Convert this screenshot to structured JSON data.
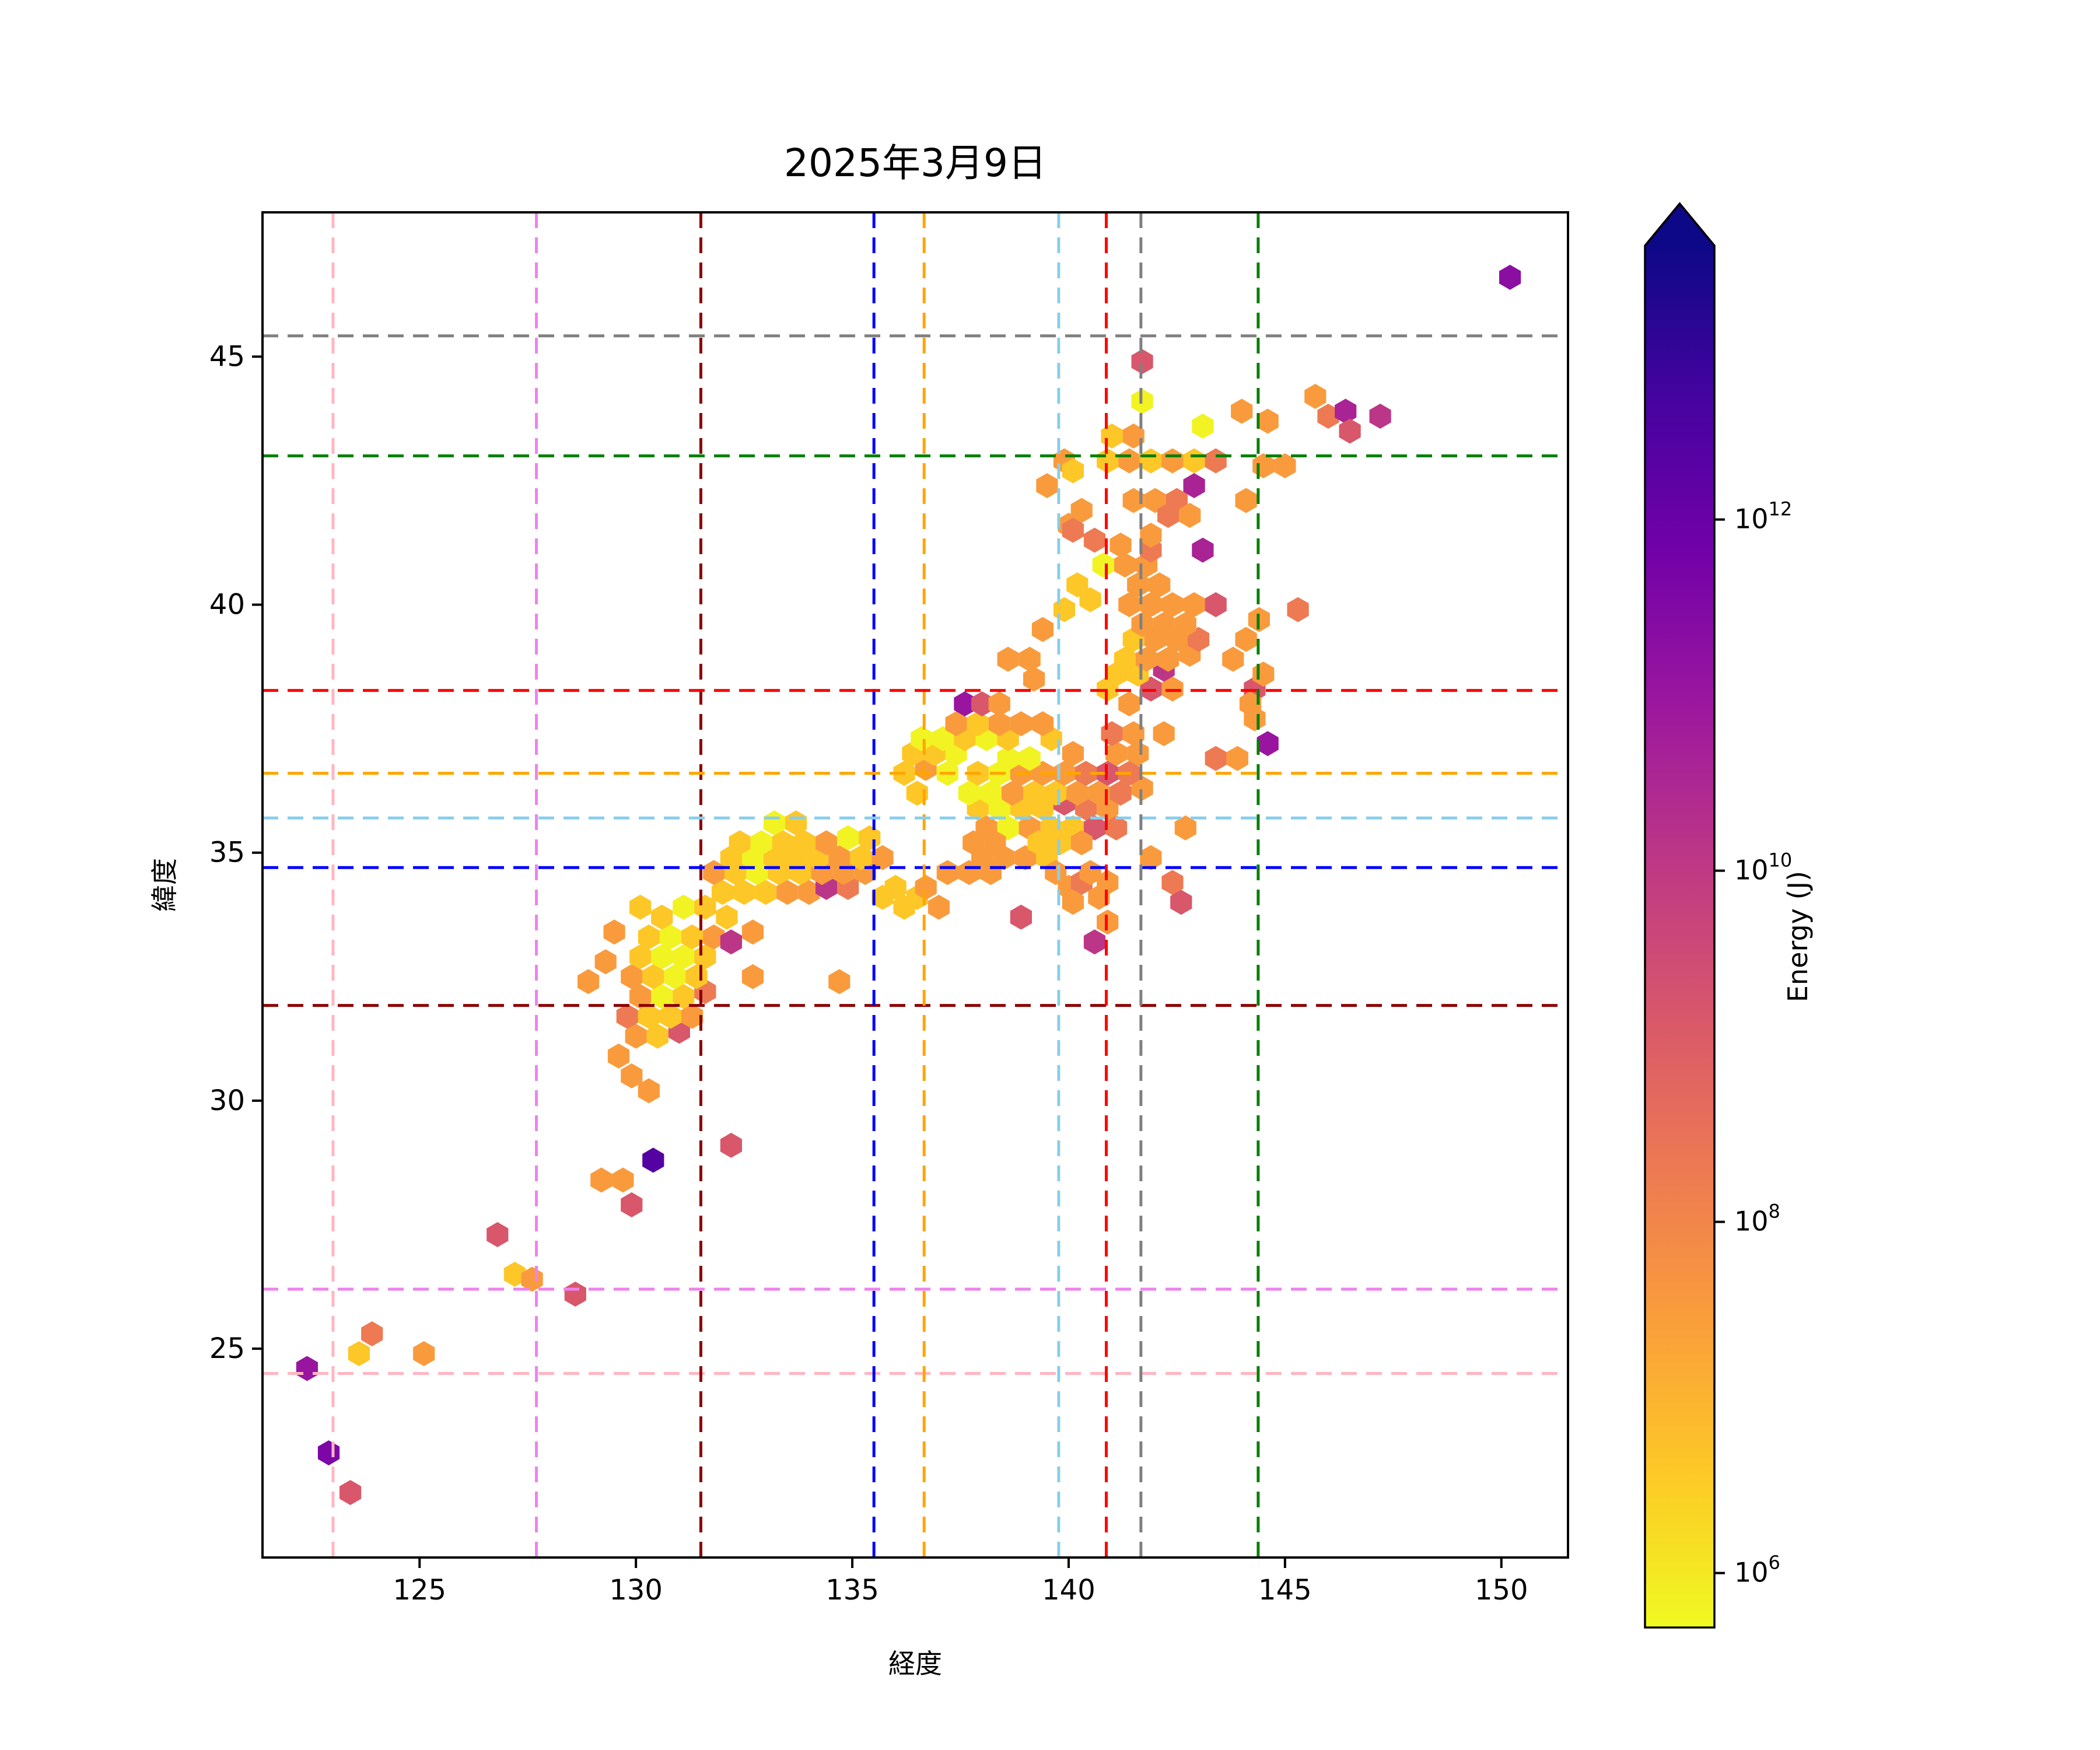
{
  "title": "2025年3月9日",
  "axes": {
    "xlabel": "経度",
    "ylabel": "緯度",
    "xlim": [
      121.37,
      151.54
    ],
    "ylim": [
      20.79,
      47.91
    ],
    "xticks": [
      125,
      130,
      135,
      140,
      145,
      150
    ],
    "yticks": [
      25,
      30,
      35,
      40,
      45
    ]
  },
  "colorbar": {
    "label": "Energy (J)",
    "tick_exponents": [
      12,
      10,
      8,
      6
    ],
    "log10_min": 5.69,
    "log10_max": 13.56,
    "extend": "max",
    "colormap_low_to_high": [
      "#f0f921",
      "#fdc926",
      "#fa9e3b",
      "#ed7953",
      "#d8576b",
      "#bd3786",
      "#9c179e",
      "#7201a8",
      "#46039f",
      "#0d0887"
    ]
  },
  "reference_lines": [
    {
      "name": "pink-crosshair",
      "color": "#FFB6C1",
      "lon": 123.0,
      "lat": 24.5
    },
    {
      "name": "violet-crosshair",
      "color": "#EE82EE",
      "lon": 127.7,
      "lat": 26.2
    },
    {
      "name": "darkred-crosshair",
      "color": "#8B0000",
      "lon": 131.5,
      "lat": 31.92
    },
    {
      "name": "blue-crosshair",
      "color": "#0000FF",
      "lon": 135.5,
      "lat": 34.7
    },
    {
      "name": "orange-crosshair",
      "color": "#FFA500",
      "lon": 136.66,
      "lat": 36.6
    },
    {
      "name": "skyblue-crosshair",
      "color": "#87CEEB",
      "lon": 139.77,
      "lat": 35.7
    },
    {
      "name": "red-crosshair",
      "color": "#FF0000",
      "lon": 140.87,
      "lat": 38.27
    },
    {
      "name": "gray-crosshair",
      "color": "#808080",
      "lon": 141.67,
      "lat": 45.42
    },
    {
      "name": "green-crosshair",
      "color": "#008000",
      "lon": 144.38,
      "lat": 43.0
    }
  ],
  "chart_data": {
    "type": "heatmap",
    "subtype": "hexbin",
    "title": "2025年3月9日",
    "xlabel": "経度",
    "ylabel": "緯度",
    "value_label": "Energy (J)",
    "value_scale": "log10",
    "xlim": [
      121.37,
      151.54
    ],
    "ylim": [
      20.79,
      47.91
    ],
    "hex_width_deg": 0.5,
    "points_format": [
      "lon",
      "lat",
      "log10_energy_J"
    ],
    "points": [
      [
        122.4,
        24.6,
        11.0
      ],
      [
        122.9,
        22.9,
        11.6
      ],
      [
        123.4,
        22.1,
        9.2
      ],
      [
        123.6,
        24.9,
        6.6
      ],
      [
        123.9,
        25.3,
        8.3
      ],
      [
        125.1,
        24.9,
        7.5
      ],
      [
        126.8,
        27.3,
        9.2
      ],
      [
        127.2,
        26.5,
        6.6
      ],
      [
        127.6,
        26.4,
        7.5
      ],
      [
        128.6,
        26.1,
        9.2
      ],
      [
        129.2,
        28.4,
        7.5
      ],
      [
        129.7,
        28.4,
        7.5
      ],
      [
        129.9,
        27.9,
        9.2
      ],
      [
        130.4,
        28.8,
        12.4
      ],
      [
        132.2,
        29.1,
        9.2
      ],
      [
        129.6,
        30.9,
        7.5
      ],
      [
        129.9,
        30.5,
        7.5
      ],
      [
        130.3,
        30.2,
        7.5
      ],
      [
        130.0,
        31.3,
        7.5
      ],
      [
        130.5,
        31.3,
        6.6
      ],
      [
        131.0,
        31.4,
        9.2
      ],
      [
        129.8,
        31.7,
        8.3
      ],
      [
        130.3,
        31.7,
        6.6
      ],
      [
        130.8,
        31.7,
        6.6
      ],
      [
        131.3,
        31.7,
        7.5
      ],
      [
        130.1,
        32.1,
        7.5
      ],
      [
        130.6,
        32.1,
        5.8
      ],
      [
        131.1,
        32.1,
        6.6
      ],
      [
        131.6,
        32.2,
        8.3
      ],
      [
        128.9,
        32.4,
        7.5
      ],
      [
        129.3,
        32.8,
        7.5
      ],
      [
        129.9,
        32.5,
        7.5
      ],
      [
        130.4,
        32.5,
        6.6
      ],
      [
        130.9,
        32.5,
        5.8
      ],
      [
        131.4,
        32.5,
        6.6
      ],
      [
        130.1,
        32.9,
        6.6
      ],
      [
        130.6,
        32.9,
        5.8
      ],
      [
        131.1,
        32.9,
        5.8
      ],
      [
        131.6,
        32.9,
        6.6
      ],
      [
        130.3,
        33.3,
        6.6
      ],
      [
        130.8,
        33.3,
        5.8
      ],
      [
        131.3,
        33.3,
        6.6
      ],
      [
        131.8,
        33.3,
        7.5
      ],
      [
        132.2,
        33.2,
        10.1
      ],
      [
        129.5,
        33.4,
        7.5
      ],
      [
        130.1,
        33.9,
        6.6
      ],
      [
        130.6,
        33.7,
        6.6
      ],
      [
        131.1,
        33.9,
        5.8
      ],
      [
        131.6,
        33.9,
        6.6
      ],
      [
        132.1,
        33.7,
        6.6
      ],
      [
        132.7,
        32.5,
        7.5
      ],
      [
        134.7,
        32.4,
        7.5
      ],
      [
        132.7,
        33.4,
        7.5
      ],
      [
        132.0,
        34.2,
        6.6
      ],
      [
        132.5,
        34.2,
        6.6
      ],
      [
        133.0,
        34.2,
        6.6
      ],
      [
        133.5,
        34.2,
        7.5
      ],
      [
        134.0,
        34.2,
        7.5
      ],
      [
        134.4,
        34.3,
        10.1
      ],
      [
        134.9,
        34.3,
        8.3
      ],
      [
        131.8,
        34.6,
        7.5
      ],
      [
        132.3,
        34.6,
        6.6
      ],
      [
        132.8,
        34.6,
        5.8
      ],
      [
        133.3,
        34.6,
        6.6
      ],
      [
        133.8,
        34.6,
        6.6
      ],
      [
        134.3,
        34.6,
        7.5
      ],
      [
        134.8,
        34.6,
        7.5
      ],
      [
        135.3,
        34.6,
        7.5
      ],
      [
        132.2,
        34.9,
        6.6
      ],
      [
        132.7,
        34.9,
        5.8
      ],
      [
        133.2,
        34.9,
        6.6
      ],
      [
        133.7,
        34.9,
        6.6
      ],
      [
        134.2,
        34.9,
        6.6
      ],
      [
        134.7,
        34.9,
        7.5
      ],
      [
        135.2,
        34.9,
        6.6
      ],
      [
        135.7,
        34.9,
        7.5
      ],
      [
        132.4,
        35.2,
        6.6
      ],
      [
        132.9,
        35.2,
        5.8
      ],
      [
        133.4,
        35.2,
        6.6
      ],
      [
        133.9,
        35.2,
        6.6
      ],
      [
        134.4,
        35.2,
        7.5
      ],
      [
        134.9,
        35.3,
        5.8
      ],
      [
        135.4,
        35.3,
        6.6
      ],
      [
        133.2,
        35.6,
        5.8
      ],
      [
        133.7,
        35.6,
        6.6
      ],
      [
        135.7,
        34.1,
        6.6
      ],
      [
        136.0,
        34.3,
        6.6
      ],
      [
        136.2,
        33.9,
        6.6
      ],
      [
        136.5,
        34.1,
        6.6
      ],
      [
        136.7,
        34.3,
        7.5
      ],
      [
        137.0,
        33.9,
        7.5
      ],
      [
        137.2,
        34.6,
        7.5
      ],
      [
        137.7,
        34.6,
        7.5
      ],
      [
        138.2,
        34.6,
        7.5
      ],
      [
        138.0,
        34.9,
        7.5
      ],
      [
        138.5,
        34.9,
        7.5
      ],
      [
        139.0,
        34.9,
        7.5
      ],
      [
        139.5,
        34.9,
        6.6
      ],
      [
        139.7,
        34.6,
        7.5
      ],
      [
        140.0,
        34.3,
        7.5
      ],
      [
        140.3,
        34.4,
        8.3
      ],
      [
        140.5,
        34.6,
        7.5
      ],
      [
        140.9,
        34.4,
        7.5
      ],
      [
        140.1,
        34.0,
        7.5
      ],
      [
        140.7,
        34.1,
        7.5
      ],
      [
        140.9,
        33.6,
        7.5
      ],
      [
        140.6,
        33.2,
        10.1
      ],
      [
        138.9,
        33.7,
        9.2
      ],
      [
        142.4,
        34.4,
        8.3
      ],
      [
        142.6,
        34.0,
        9.2
      ],
      [
        141.9,
        34.9,
        7.5
      ],
      [
        138.1,
        35.5,
        7.5
      ],
      [
        138.6,
        35.5,
        5.8
      ],
      [
        139.1,
        35.5,
        7.5
      ],
      [
        139.6,
        35.5,
        6.6
      ],
      [
        140.1,
        35.5,
        6.6
      ],
      [
        140.6,
        35.5,
        9.2
      ],
      [
        141.1,
        35.5,
        8.3
      ],
      [
        137.8,
        35.2,
        7.5
      ],
      [
        138.3,
        35.2,
        7.5
      ],
      [
        139.3,
        35.2,
        6.6
      ],
      [
        139.8,
        35.2,
        6.6
      ],
      [
        140.3,
        35.2,
        7.5
      ],
      [
        137.9,
        35.9,
        6.6
      ],
      [
        138.4,
        35.9,
        5.8
      ],
      [
        138.9,
        35.9,
        6.6
      ],
      [
        139.4,
        35.9,
        6.6
      ],
      [
        139.9,
        36.0,
        9.2
      ],
      [
        140.4,
        35.9,
        8.3
      ],
      [
        140.9,
        35.9,
        7.5
      ],
      [
        137.7,
        36.2,
        5.8
      ],
      [
        138.2,
        36.2,
        5.8
      ],
      [
        138.7,
        36.2,
        7.5
      ],
      [
        139.2,
        36.2,
        6.6
      ],
      [
        139.7,
        36.2,
        6.6
      ],
      [
        140.2,
        36.2,
        7.5
      ],
      [
        140.7,
        36.2,
        7.5
      ],
      [
        141.2,
        36.2,
        8.3
      ],
      [
        141.7,
        36.3,
        7.5
      ],
      [
        136.5,
        36.2,
        6.6
      ],
      [
        136.2,
        36.6,
        6.6
      ],
      [
        136.7,
        36.7,
        7.5
      ],
      [
        137.2,
        36.6,
        5.8
      ],
      [
        137.9,
        36.6,
        6.6
      ],
      [
        138.4,
        36.6,
        5.8
      ],
      [
        138.9,
        36.6,
        7.5
      ],
      [
        139.4,
        36.6,
        7.5
      ],
      [
        139.9,
        36.6,
        7.5
      ],
      [
        140.4,
        36.6,
        8.3
      ],
      [
        140.9,
        36.6,
        9.2
      ],
      [
        141.4,
        36.6,
        8.3
      ],
      [
        136.4,
        37.0,
        6.6
      ],
      [
        136.9,
        37.0,
        6.6
      ],
      [
        137.4,
        37.0,
        5.8
      ],
      [
        138.6,
        36.9,
        5.8
      ],
      [
        139.1,
        36.9,
        5.8
      ],
      [
        140.1,
        37.0,
        7.5
      ],
      [
        141.1,
        37.0,
        7.5
      ],
      [
        141.6,
        37.0,
        7.5
      ],
      [
        136.6,
        37.3,
        5.8
      ],
      [
        137.1,
        37.3,
        5.8
      ],
      [
        137.6,
        37.3,
        6.6
      ],
      [
        138.1,
        37.3,
        5.8
      ],
      [
        138.6,
        37.3,
        6.6
      ],
      [
        139.6,
        37.3,
        6.6
      ],
      [
        141.0,
        37.4,
        8.3
      ],
      [
        141.5,
        37.4,
        7.5
      ],
      [
        137.4,
        37.6,
        7.5
      ],
      [
        137.9,
        37.6,
        6.6
      ],
      [
        138.4,
        37.6,
        7.5
      ],
      [
        138.9,
        37.6,
        7.5
      ],
      [
        139.4,
        37.6,
        7.5
      ],
      [
        137.6,
        38.0,
        11.0
      ],
      [
        138.0,
        38.0,
        9.2
      ],
      [
        138.4,
        38.0,
        7.5
      ],
      [
        138.6,
        38.9,
        7.5
      ],
      [
        139.1,
        38.9,
        7.5
      ],
      [
        139.2,
        38.5,
        7.5
      ],
      [
        139.4,
        39.5,
        7.5
      ],
      [
        139.9,
        39.9,
        6.6
      ],
      [
        140.2,
        40.4,
        6.6
      ],
      [
        140.5,
        40.1,
        6.6
      ],
      [
        140.9,
        38.3,
        6.6
      ],
      [
        141.4,
        38.0,
        7.5
      ],
      [
        141.9,
        38.3,
        9.2
      ],
      [
        142.4,
        38.3,
        7.5
      ],
      [
        141.1,
        38.6,
        6.6
      ],
      [
        141.6,
        38.6,
        6.6
      ],
      [
        142.2,
        38.7,
        10.1
      ],
      [
        141.3,
        38.9,
        6.6
      ],
      [
        141.8,
        38.9,
        7.5
      ],
      [
        142.3,
        38.9,
        7.5
      ],
      [
        142.8,
        39.0,
        7.5
      ],
      [
        141.5,
        39.3,
        6.6
      ],
      [
        142.0,
        39.3,
        7.5
      ],
      [
        142.5,
        39.3,
        7.5
      ],
      [
        143.0,
        39.3,
        8.3
      ],
      [
        141.7,
        39.6,
        7.5
      ],
      [
        142.2,
        39.6,
        7.5
      ],
      [
        142.7,
        39.6,
        7.5
      ],
      [
        141.4,
        40.0,
        7.5
      ],
      [
        141.9,
        40.0,
        7.5
      ],
      [
        142.4,
        40.0,
        7.5
      ],
      [
        142.9,
        40.0,
        7.5
      ],
      [
        143.4,
        40.0,
        9.2
      ],
      [
        141.6,
        40.4,
        7.5
      ],
      [
        142.1,
        40.4,
        7.5
      ],
      [
        141.3,
        40.8,
        7.5
      ],
      [
        141.8,
        40.8,
        7.5
      ],
      [
        140.8,
        40.8,
        5.8
      ],
      [
        141.2,
        41.2,
        7.5
      ],
      [
        141.9,
        41.1,
        8.3
      ],
      [
        144.3,
        38.3,
        9.2
      ],
      [
        144.1,
        39.3,
        7.5
      ],
      [
        144.4,
        39.7,
        7.5
      ],
      [
        143.8,
        38.9,
        7.5
      ],
      [
        144.5,
        38.6,
        7.5
      ],
      [
        144.2,
        38.0,
        7.5
      ],
      [
        144.3,
        37.7,
        7.5
      ],
      [
        144.6,
        37.2,
        11.0
      ],
      [
        145.3,
        39.9,
        8.3
      ],
      [
        143.4,
        36.9,
        8.3
      ],
      [
        143.9,
        36.9,
        7.5
      ],
      [
        142.7,
        35.5,
        7.5
      ],
      [
        142.2,
        37.4,
        7.5
      ],
      [
        139.5,
        42.4,
        7.5
      ],
      [
        139.9,
        42.9,
        7.5
      ],
      [
        140.1,
        42.7,
        6.6
      ],
      [
        140.0,
        41.6,
        7.5
      ],
      [
        140.3,
        41.9,
        7.5
      ],
      [
        140.1,
        41.5,
        8.3
      ],
      [
        140.6,
        41.3,
        8.3
      ],
      [
        140.9,
        42.9,
        6.6
      ],
      [
        141.4,
        42.9,
        7.5
      ],
      [
        141.9,
        42.9,
        6.6
      ],
      [
        142.4,
        42.9,
        7.5
      ],
      [
        142.9,
        42.9,
        6.6
      ],
      [
        143.4,
        42.9,
        8.3
      ],
      [
        141.0,
        43.4,
        6.6
      ],
      [
        141.5,
        43.4,
        7.5
      ],
      [
        142.9,
        42.4,
        10.6
      ],
      [
        143.1,
        41.1,
        10.6
      ],
      [
        142.0,
        42.1,
        7.5
      ],
      [
        142.5,
        42.1,
        8.3
      ],
      [
        142.3,
        41.8,
        8.3
      ],
      [
        142.8,
        41.8,
        7.5
      ],
      [
        141.5,
        42.1,
        7.5
      ],
      [
        141.9,
        41.4,
        7.5
      ],
      [
        141.7,
        44.1,
        5.8
      ],
      [
        143.1,
        43.6,
        5.8
      ],
      [
        141.7,
        44.9,
        9.2
      ],
      [
        144.0,
        43.9,
        7.5
      ],
      [
        144.6,
        43.7,
        7.5
      ],
      [
        144.5,
        42.8,
        7.5
      ],
      [
        145.0,
        42.8,
        7.5
      ],
      [
        144.1,
        42.1,
        7.5
      ],
      [
        145.7,
        44.2,
        7.5
      ],
      [
        146.0,
        43.8,
        8.3
      ],
      [
        146.4,
        43.9,
        10.6
      ],
      [
        146.5,
        43.5,
        9.2
      ],
      [
        147.2,
        43.8,
        10.1
      ],
      [
        150.2,
        46.6,
        11.3
      ]
    ]
  }
}
